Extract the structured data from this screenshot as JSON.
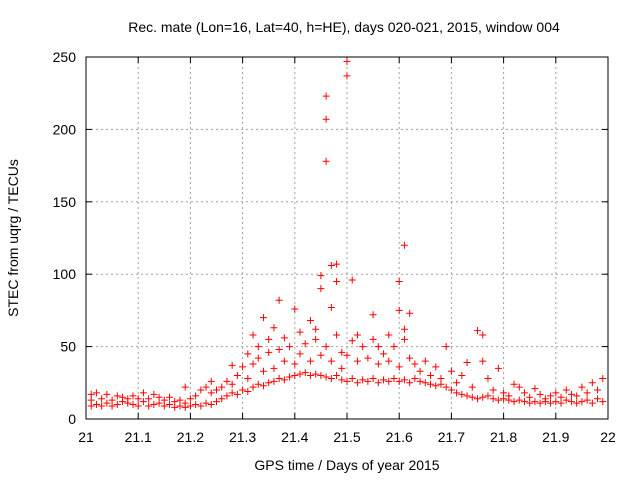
{
  "chart_data": {
    "type": "scatter",
    "title": "Rec. mate (Lon=16, Lat=40, h=HE), days 020-021, 2015, window 004",
    "xlabel": "GPS time / Days of year 2015",
    "ylabel": "STEC from uqrg / TECUs",
    "xlim": [
      21,
      22
    ],
    "ylim": [
      0,
      250
    ],
    "xticks": [
      21,
      21.1,
      21.2,
      21.3,
      21.4,
      21.5,
      21.6,
      21.7,
      21.8,
      21.9,
      22
    ],
    "xtick_labels": [
      "21",
      "21.1",
      "21.2",
      "21.3",
      "21.4",
      "21.5",
      "21.6",
      "21.7",
      "21.8",
      "21.9",
      "22"
    ],
    "yticks": [
      0,
      50,
      100,
      150,
      200,
      250
    ],
    "ytick_labels": [
      "0",
      "50",
      "100",
      "150",
      "200",
      "250"
    ],
    "grid": true,
    "marker": "+",
    "color": "#ff0000",
    "series": [
      {
        "name": "",
        "points": [
          [
            21.01,
            9
          ],
          [
            21.01,
            13
          ],
          [
            21.01,
            17
          ],
          [
            21.02,
            10
          ],
          [
            21.02,
            18
          ],
          [
            21.03,
            9
          ],
          [
            21.03,
            14
          ],
          [
            21.04,
            11
          ],
          [
            21.04,
            17
          ],
          [
            21.05,
            9
          ],
          [
            21.05,
            13
          ],
          [
            21.06,
            10
          ],
          [
            21.06,
            16
          ],
          [
            21.07,
            12
          ],
          [
            21.07,
            15
          ],
          [
            21.08,
            11
          ],
          [
            21.08,
            14
          ],
          [
            21.09,
            10
          ],
          [
            21.09,
            16
          ],
          [
            21.1,
            9
          ],
          [
            21.1,
            14
          ],
          [
            21.11,
            12
          ],
          [
            21.11,
            18
          ],
          [
            21.12,
            9
          ],
          [
            21.12,
            14
          ],
          [
            21.13,
            10
          ],
          [
            21.13,
            17
          ],
          [
            21.14,
            11
          ],
          [
            21.14,
            15
          ],
          [
            21.15,
            9
          ],
          [
            21.15,
            13
          ],
          [
            21.16,
            10
          ],
          [
            21.16,
            15
          ],
          [
            21.17,
            8
          ],
          [
            21.17,
            12
          ],
          [
            21.18,
            9
          ],
          [
            21.18,
            13
          ],
          [
            21.19,
            8
          ],
          [
            21.19,
            11
          ],
          [
            21.2,
            9
          ],
          [
            21.2,
            14
          ],
          [
            21.19,
            22
          ],
          [
            21.21,
            10
          ],
          [
            21.21,
            16
          ],
          [
            21.22,
            9
          ],
          [
            21.22,
            20
          ],
          [
            21.23,
            11
          ],
          [
            21.23,
            22
          ],
          [
            21.24,
            10
          ],
          [
            21.24,
            18
          ],
          [
            21.24,
            26
          ],
          [
            21.25,
            12
          ],
          [
            21.25,
            20
          ],
          [
            21.26,
            14
          ],
          [
            21.26,
            22
          ],
          [
            21.27,
            16
          ],
          [
            21.27,
            26
          ],
          [
            21.28,
            18
          ],
          [
            21.28,
            24
          ],
          [
            21.28,
            37
          ],
          [
            21.29,
            17
          ],
          [
            21.29,
            30
          ],
          [
            21.3,
            20
          ],
          [
            21.3,
            36
          ],
          [
            21.31,
            19
          ],
          [
            21.31,
            28
          ],
          [
            21.31,
            45
          ],
          [
            21.32,
            22
          ],
          [
            21.32,
            38
          ],
          [
            21.32,
            58
          ],
          [
            21.33,
            24
          ],
          [
            21.33,
            42
          ],
          [
            21.33,
            50
          ],
          [
            21.34,
            23
          ],
          [
            21.34,
            33
          ],
          [
            21.34,
            70
          ],
          [
            21.35,
            25
          ],
          [
            21.35,
            46
          ],
          [
            21.35,
            55
          ],
          [
            21.36,
            26
          ],
          [
            21.36,
            35
          ],
          [
            21.36,
            63
          ],
          [
            21.37,
            28
          ],
          [
            21.37,
            48
          ],
          [
            21.37,
            82
          ],
          [
            21.38,
            27
          ],
          [
            21.38,
            40
          ],
          [
            21.38,
            56
          ],
          [
            21.39,
            29
          ],
          [
            21.39,
            50
          ],
          [
            21.4,
            30
          ],
          [
            21.4,
            38
          ],
          [
            21.4,
            76
          ],
          [
            21.41,
            31
          ],
          [
            21.41,
            45
          ],
          [
            21.41,
            60
          ],
          [
            21.42,
            32
          ],
          [
            21.42,
            52
          ],
          [
            21.43,
            30
          ],
          [
            21.43,
            40
          ],
          [
            21.43,
            68
          ],
          [
            21.44,
            31
          ],
          [
            21.44,
            55
          ],
          [
            21.44,
            62
          ],
          [
            21.45,
            30
          ],
          [
            21.45,
            44
          ],
          [
            21.45,
            99
          ],
          [
            21.45,
            90
          ],
          [
            21.46,
            29
          ],
          [
            21.46,
            50
          ],
          [
            21.46,
            178
          ],
          [
            21.46,
            207
          ],
          [
            21.46,
            223
          ],
          [
            21.47,
            28
          ],
          [
            21.47,
            40
          ],
          [
            21.47,
            77
          ],
          [
            21.47,
            106
          ],
          [
            21.48,
            30
          ],
          [
            21.48,
            58
          ],
          [
            21.48,
            107
          ],
          [
            21.48,
            95
          ],
          [
            21.49,
            27
          ],
          [
            21.49,
            35
          ],
          [
            21.49,
            46
          ],
          [
            21.5,
            26
          ],
          [
            21.5,
            44
          ],
          [
            21.5,
            237
          ],
          [
            21.5,
            247
          ],
          [
            21.51,
            28
          ],
          [
            21.51,
            54
          ],
          [
            21.51,
            96
          ],
          [
            21.52,
            25
          ],
          [
            21.52,
            40
          ],
          [
            21.52,
            58
          ],
          [
            21.53,
            27
          ],
          [
            21.53,
            50
          ],
          [
            21.54,
            26
          ],
          [
            21.54,
            42
          ],
          [
            21.55,
            28
          ],
          [
            21.55,
            55
          ],
          [
            21.55,
            72
          ],
          [
            21.56,
            25
          ],
          [
            21.56,
            38
          ],
          [
            21.56,
            50
          ],
          [
            21.57,
            27
          ],
          [
            21.57,
            45
          ],
          [
            21.58,
            26
          ],
          [
            21.58,
            40
          ],
          [
            21.58,
            58
          ],
          [
            21.59,
            28
          ],
          [
            21.59,
            50
          ],
          [
            21.6,
            26
          ],
          [
            21.6,
            36
          ],
          [
            21.6,
            75
          ],
          [
            21.6,
            95
          ],
          [
            21.61,
            27
          ],
          [
            21.61,
            55
          ],
          [
            21.61,
            62
          ],
          [
            21.61,
            120
          ],
          [
            21.62,
            25
          ],
          [
            21.62,
            42
          ],
          [
            21.62,
            73
          ],
          [
            21.63,
            28
          ],
          [
            21.63,
            38
          ],
          [
            21.64,
            26
          ],
          [
            21.64,
            33
          ],
          [
            21.65,
            25
          ],
          [
            21.65,
            40
          ],
          [
            21.66,
            24
          ],
          [
            21.66,
            30
          ],
          [
            21.67,
            23
          ],
          [
            21.67,
            36
          ],
          [
            21.68,
            24
          ],
          [
            21.68,
            28
          ],
          [
            21.69,
            22
          ],
          [
            21.69,
            50
          ],
          [
            21.7,
            20
          ],
          [
            21.7,
            33
          ],
          [
            21.71,
            18
          ],
          [
            21.71,
            25
          ],
          [
            21.72,
            17
          ],
          [
            21.72,
            30
          ],
          [
            21.73,
            16
          ],
          [
            21.73,
            39
          ],
          [
            21.74,
            15
          ],
          [
            21.74,
            22
          ],
          [
            21.75,
            14
          ],
          [
            21.75,
            61
          ],
          [
            21.76,
            15
          ],
          [
            21.76,
            40
          ],
          [
            21.76,
            58
          ],
          [
            21.77,
            16
          ],
          [
            21.77,
            28
          ],
          [
            21.78,
            14
          ],
          [
            21.78,
            20
          ],
          [
            21.79,
            13
          ],
          [
            21.79,
            35
          ],
          [
            21.8,
            14
          ],
          [
            21.8,
            18
          ],
          [
            21.81,
            13
          ],
          [
            21.81,
            16
          ],
          [
            21.82,
            12
          ],
          [
            21.82,
            24
          ],
          [
            21.83,
            13
          ],
          [
            21.83,
            22
          ],
          [
            21.84,
            12
          ],
          [
            21.84,
            18
          ],
          [
            21.85,
            11
          ],
          [
            21.85,
            15
          ],
          [
            21.86,
            12
          ],
          [
            21.86,
            21
          ],
          [
            21.87,
            11
          ],
          [
            21.87,
            17
          ],
          [
            21.88,
            12
          ],
          [
            21.88,
            14
          ],
          [
            21.89,
            11
          ],
          [
            21.89,
            16
          ],
          [
            21.9,
            12
          ],
          [
            21.9,
            18
          ],
          [
            21.91,
            11
          ],
          [
            21.91,
            15
          ],
          [
            21.92,
            13
          ],
          [
            21.92,
            20
          ],
          [
            21.93,
            12
          ],
          [
            21.93,
            17
          ],
          [
            21.94,
            11
          ],
          [
            21.94,
            16
          ],
          [
            21.95,
            12
          ],
          [
            21.95,
            22
          ],
          [
            21.96,
            13
          ],
          [
            21.96,
            18
          ],
          [
            21.97,
            11
          ],
          [
            21.97,
            25
          ],
          [
            21.98,
            14
          ],
          [
            21.98,
            20
          ],
          [
            21.99,
            12
          ],
          [
            21.99,
            28
          ]
        ]
      }
    ]
  }
}
